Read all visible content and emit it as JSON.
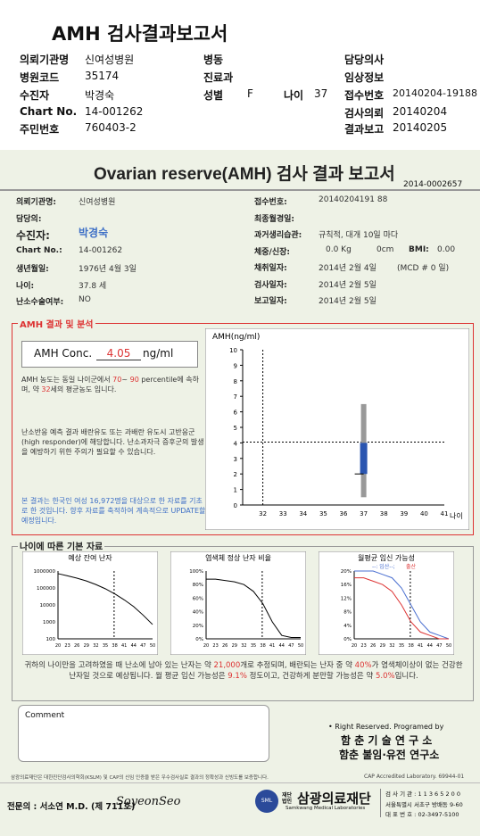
{
  "header": {
    "title": "AMH 검사결과보고서",
    "fields": [
      {
        "k": "의뢰기관명",
        "v": "신여성병원"
      },
      {
        "k": "병원코드",
        "v": "35174"
      },
      {
        "k": "수진자",
        "v": "박경숙"
      },
      {
        "k": "Chart No.",
        "v": "14-001262"
      },
      {
        "k": "주민번호",
        "v": "760403-2"
      },
      {
        "k": "병동",
        "v": ""
      },
      {
        "k": "진료과",
        "v": ""
      },
      {
        "k": "성별",
        "v": "F"
      },
      {
        "k": "나이",
        "v": "37"
      },
      {
        "k": "담당의사",
        "v": ""
      },
      {
        "k": "임상정보",
        "v": ""
      },
      {
        "k": "접수번호",
        "v": "20140204-19188"
      },
      {
        "k": "검사의뢰",
        "v": "20140204"
      },
      {
        "k": "결과보고",
        "v": "20140205"
      }
    ]
  },
  "report": {
    "title": "Ovarian reserve(AMH) 검사 결과 보고서",
    "doc_no": "2014-0002657",
    "left": {
      "inst_k": "의뢰기관명:",
      "inst_v": "신여성병원",
      "doctor_k": "담당의:",
      "patient_k": "수진자:",
      "patient_v": "박경숙",
      "chart_k": "Chart No.:",
      "chart_v": "14-001262",
      "dob_k": "생년월일:",
      "dob_v": "1976년 4월 3일",
      "age_k": "나이:",
      "age_v": "37.8 세",
      "surgery_k": "난소수술여부:",
      "surgery_v": "NO"
    },
    "right": {
      "recv_k": "접수번호:",
      "recv_v": "20140204191 88",
      "lmp_k": "최종월경일:",
      "cycle_k": "과거생리습관:",
      "cycle_v": "규칙적, 대개   10일 마다",
      "wt_k": "체중/신장:",
      "wt_v": "0.0 Kg",
      "ht_v": "0cm",
      "bmi_k": "BMI:",
      "bmi_v": "0.00",
      "collect_k": "채취일자:",
      "collect_v": "2014년 2월 4일",
      "mcd": "(MCD # 0 일)",
      "test_k": "검사일자:",
      "test_v": "2014년 2월 5일",
      "report_k": "보고일자:",
      "report_v": "2014년 2월 5일"
    },
    "amh": {
      "section_title": "AMH 결과 및 분석",
      "conc_label": "AMH Conc.",
      "conc_value": "4.05",
      "conc_unit": "ng/ml",
      "analysis_1a": "AMH 농도는 동일 나이군에서",
      "pct_lo": "70",
      "pct_tilde": "~",
      "pct_hi": "90",
      "analysis_1b": "percentile에 속하며, 약",
      "pct_mid": "32",
      "analysis_1c": "세의 평균농도",
      "analysis_1d": "입니다.",
      "analysis_2": "난소반응 예측 결과 배란유도 또는 과배란 유도시 고반응군 (high responder)에 해당합니다. 난소과자극 증후군의 발생을 예방하기 위한 주의가 필요할 수 있습니다.",
      "note": "본 결과는 한국인 여성 16,972명을 대상으로 한 자료를 기초로 한 것입니다. 향후 자료를 축적하여 계속적으로 UPDATE할 예정입니다."
    },
    "age_section": {
      "title": "나이에 따른 기본 자료",
      "ch1_title": "예상 잔여 난자",
      "ch2_title": "염색체 정상 난자 비율",
      "ch3_title": "월평균 임신 가능성",
      "ch3_legend_a": "--: 임산--;",
      "ch3_legend_b": "출산",
      "summary_a": "귀하의 나이만을 고려하였을 때 난소에 남아 있는 난자는 약",
      "eggs": "21,000",
      "summary_b": "개로 추정되며, 배란되는 난자 중 약",
      "normal_pct": "40%",
      "summary_c": "가 염색체이상이 없는 건강한 난자일 것으로 예상됩니다. 월 평균 임신 가능성은",
      "preg_pct": "9.1%",
      "summary_d": "정도이고, 건강하게 분만할 가능성은 약",
      "birth_pct": "5.0%",
      "summary_e": "입니다."
    },
    "comment_label": "Comment",
    "rights": "• Right Reserved. Programed by",
    "lab1": "함 춘 기 술 연 구 소",
    "lab2": "함춘 불임·유전 연구소",
    "footer_note": "삼광의료재단은 대한진단검사의학회(KSLM) 및 CAP의 신임 인증을 받은 우수검사실로 결과의 정확성과 신빙도를 보증합니다.",
    "cap": "CAP  Accredited  Laboratory.  69944-01",
    "signer": "전문의 : 서소연 M.D. (제 711호)",
    "signature": "SoyeonSeo",
    "org_prefix": "재단\n법인",
    "org": "삼광의료재단",
    "org_en": "Samkwang Medical Laboratories",
    "sml": "SML",
    "org_info1": "검 사 기 관 : 1 1 3 6 5 2 0 0",
    "org_info2": "서울특별시 서초구 방배동 9-60",
    "org_info3": "대 표 번 호 : 02-3497-5100"
  },
  "chart_data": [
    {
      "type": "scatter",
      "title": "AMH(ng/ml)",
      "xlabel": "나이",
      "x_ticks": [
        32,
        33,
        34,
        35,
        36,
        37,
        38,
        39,
        40,
        41
      ],
      "y_ticks": [
        0,
        1,
        2,
        3,
        4,
        5,
        6,
        7,
        8,
        9,
        10
      ],
      "ylim": [
        0,
        10
      ],
      "xlim": [
        31,
        41
      ],
      "reference_x": 32,
      "patient": {
        "age": 37.8,
        "amh": 4.05
      },
      "age_range_bar": {
        "x": 37,
        "low": 0.5,
        "high": 6.5
      },
      "iqr_box": {
        "x": 37,
        "low": 2.0,
        "high": 4.0
      },
      "color": "#2a55b0"
    },
    {
      "type": "line",
      "title": "예상 잔여 난자",
      "y_ticks": [
        "1000000",
        "100000",
        "10000",
        "1000",
        "100"
      ],
      "x_ticks": [
        "20",
        "23",
        "26",
        "29",
        "32",
        "35",
        "38",
        "41",
        "44",
        "47",
        "50"
      ],
      "x": [
        20,
        23,
        26,
        29,
        32,
        35,
        38,
        41,
        44,
        47,
        50
      ],
      "values": [
        700000,
        520000,
        380000,
        260000,
        160000,
        90000,
        45000,
        20000,
        8000,
        2500,
        700
      ],
      "marker_x": 37.8
    },
    {
      "type": "line",
      "title": "염색체 정상 난자 비율",
      "y_ticks": [
        "100%",
        "80%",
        "60%",
        "40%",
        "20%",
        "0%"
      ],
      "x_ticks": [
        "20",
        "23",
        "26",
        "29",
        "32",
        "35",
        "38",
        "41",
        "44",
        "47",
        "50"
      ],
      "x": [
        20,
        23,
        26,
        29,
        32,
        35,
        38,
        41,
        44,
        47,
        50
      ],
      "values": [
        88,
        88,
        86,
        84,
        80,
        70,
        52,
        25,
        5,
        2,
        2
      ],
      "marker_x": 37.8
    },
    {
      "type": "line",
      "title": "월평균 임신 가능성",
      "y_ticks": [
        "20%",
        "16%",
        "12%",
        "8%",
        "4%",
        "0%"
      ],
      "x_ticks": [
        "20",
        "23",
        "26",
        "29",
        "32",
        "35",
        "38",
        "41",
        "44",
        "47",
        "50"
      ],
      "series": [
        {
          "name": "임산",
          "x": [
            20,
            23,
            26,
            29,
            32,
            35,
            38,
            41,
            44,
            47,
            50
          ],
          "values": [
            20,
            20,
            20,
            19,
            18,
            15,
            10,
            5,
            2,
            1,
            0
          ]
        },
        {
          "name": "출산",
          "x": [
            20,
            23,
            26,
            29,
            32,
            35,
            38,
            41,
            44,
            47,
            50
          ],
          "values": [
            18,
            18,
            17,
            16,
            14,
            10,
            5,
            2,
            1,
            0,
            0
          ]
        }
      ],
      "marker_x": 37.8
    }
  ]
}
